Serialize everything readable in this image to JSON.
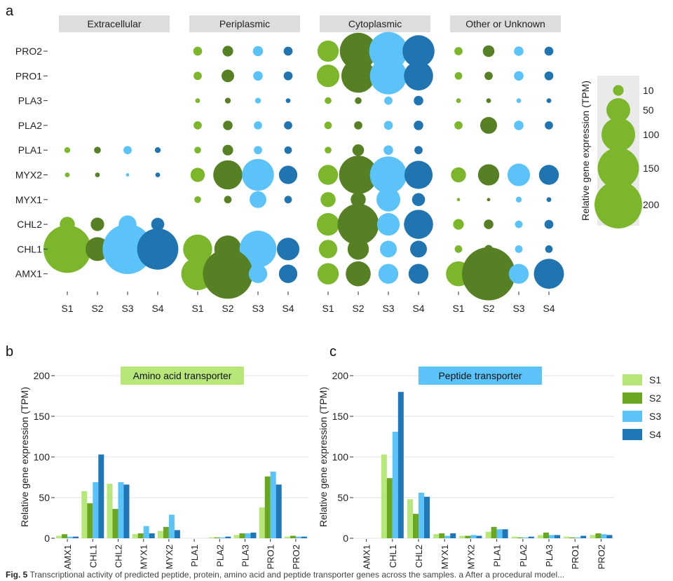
{
  "figure": {
    "panel_labels": {
      "a": "a",
      "b": "b",
      "c": "c"
    },
    "caption_lead": "Fig. 5",
    "caption_text": "Transcriptional activity of predicted peptide, protein, amino acid and peptide transporter genes across the samples. a After a procedural model..."
  },
  "colors": {
    "S1": "#b7e77a",
    "S2": "#6aa61f",
    "S3": "#5bc3f7",
    "S4": "#1f77b8",
    "dot_S1": "#7cb62b",
    "dot_S2": "#577f24",
    "dot_S3": "#5bc3f7",
    "dot_S4": "#2074b0",
    "strip_bg": "#dddddd"
  },
  "chart_data": [
    {
      "type": "scatter",
      "subtype": "bubble-grid",
      "panel": "a",
      "facets": [
        "Extracellular",
        "Periplasmic",
        "Cytoplasmic",
        "Other or Unknown"
      ],
      "rows": [
        "PRO2",
        "PRO1",
        "PLA3",
        "PLA2",
        "PLA1",
        "MYX2",
        "MYX1",
        "CHL2",
        "CHL1",
        "AMX1"
      ],
      "samples": [
        "S1",
        "S2",
        "S3",
        "S4"
      ],
      "values": {
        "Extracellular": {
          "PRO2": [
            null,
            null,
            null,
            null
          ],
          "PRO1": [
            null,
            null,
            null,
            null
          ],
          "PLA3": [
            null,
            null,
            null,
            null
          ],
          "PLA2": [
            null,
            null,
            null,
            null
          ],
          "PLA1": [
            3,
            4,
            6,
            3
          ],
          "MYX2": [
            2,
            2,
            1,
            2
          ],
          "MYX1": [
            null,
            null,
            null,
            null
          ],
          "CHL2": [
            20,
            16,
            28,
            15
          ],
          "CHL1": [
            200,
            50,
            220,
            150
          ],
          "AMX1": [
            null,
            null,
            null,
            null
          ]
        },
        "Periplasmic": {
          "PRO2": [
            7,
            10,
            9,
            7
          ],
          "PRO1": [
            6,
            14,
            8,
            7
          ],
          "PLA3": [
            2,
            3,
            3,
            2
          ],
          "PLA2": [
            6,
            8,
            6,
            6
          ],
          "PLA1": [
            4,
            10,
            6,
            5
          ],
          "MYX2": [
            18,
            75,
            90,
            30
          ],
          "MYX1": [
            4,
            5,
            25,
            5
          ],
          "CHL2": [
            null,
            null,
            null,
            null
          ],
          "CHL1": [
            75,
            65,
            120,
            45
          ],
          "AMX1": [
            95,
            220,
            30,
            30
          ]
        },
        "Cytoplasmic": {
          "PRO2": [
            40,
            120,
            130,
            90
          ],
          "PRO1": [
            45,
            100,
            120,
            75
          ],
          "PLA3": [
            4,
            4,
            6,
            8
          ],
          "PLA2": [
            5,
            6,
            7,
            8
          ],
          "PLA1": [
            4,
            12,
            8,
            6
          ],
          "MYX2": [
            35,
            130,
            120,
            70
          ],
          "MYX1": [
            20,
            20,
            50,
            15
          ],
          "CHL2": [
            45,
            150,
            45,
            75
          ],
          "CHL1": [
            30,
            40,
            25,
            25
          ],
          "AMX1": [
            40,
            55,
            35,
            35
          ]
        },
        "Other or Unknown": {
          "PRO2": [
            6,
            12,
            8,
            7
          ],
          "PRO1": [
            5,
            6,
            8,
            7
          ],
          "PLA3": [
            2,
            2,
            2,
            2
          ],
          "PLA2": [
            6,
            25,
            8,
            6
          ],
          "PLA1": [
            null,
            null,
            null,
            null
          ],
          "MYX2": [
            20,
            40,
            45,
            35
          ],
          "MYX1": [
            1,
            1,
            3,
            2
          ],
          "CHL2": [
            10,
            8,
            5,
            7
          ],
          "CHL1": [
            5,
            6,
            5,
            5
          ],
          "AMX1": [
            55,
            250,
            35,
            80
          ]
        }
      },
      "x_tick_labels": [
        "S1",
        "S2",
        "S3",
        "S4"
      ],
      "size_legend": {
        "title": "Relative gene expression (TPM)",
        "values": [
          10,
          50,
          100,
          150,
          200
        ],
        "labels": [
          "10",
          "50",
          "100",
          "150",
          "200"
        ]
      }
    },
    {
      "type": "bar",
      "panel": "b",
      "title": "Amino acid transporter",
      "categories": [
        "AMX1",
        "CHL1",
        "CHL2",
        "MYX1",
        "MYX2",
        "PLA1",
        "PLA2",
        "PLA3",
        "PRO1",
        "PRO2"
      ],
      "series": [
        {
          "name": "S1",
          "values": [
            3,
            58,
            67,
            5,
            9,
            0,
            1,
            4,
            38,
            2
          ]
        },
        {
          "name": "S2",
          "values": [
            5,
            43,
            36,
            6,
            14,
            0,
            1,
            6,
            76,
            3
          ]
        },
        {
          "name": "S3",
          "values": [
            2,
            69,
            69,
            15,
            29,
            0,
            1,
            6,
            82,
            2
          ]
        },
        {
          "name": "S4",
          "values": [
            2,
            103,
            66,
            6,
            10,
            0,
            2,
            7,
            66,
            2
          ]
        }
      ],
      "ylabel": "Relative gene expression (TPM)",
      "ylim": [
        0,
        200
      ],
      "yticks": [
        0,
        50,
        100,
        150,
        200
      ],
      "ytick_labels": [
        "0",
        "50",
        "100",
        "150",
        "200"
      ]
    },
    {
      "type": "bar",
      "panel": "c",
      "title": "Peptide transporter",
      "categories": [
        "AMX1",
        "CHL1",
        "CHL2",
        "MYX1",
        "MYX2",
        "PLA1",
        "PLA2",
        "PLA3",
        "PRO1",
        "PRO2"
      ],
      "series": [
        {
          "name": "S1",
          "values": [
            0,
            103,
            48,
            5,
            3,
            8,
            2,
            4,
            2,
            4
          ]
        },
        {
          "name": "S2",
          "values": [
            0,
            74,
            30,
            6,
            3,
            14,
            1,
            7,
            1,
            6
          ]
        },
        {
          "name": "S3",
          "values": [
            0,
            131,
            56,
            3,
            4,
            11,
            1,
            4,
            1,
            5
          ]
        },
        {
          "name": "S4",
          "values": [
            0,
            180,
            51,
            6,
            3,
            11,
            2,
            4,
            3,
            4
          ]
        }
      ],
      "ylabel": "Relative gene expression (TPM)",
      "ylim": [
        0,
        200
      ],
      "yticks": [
        0,
        50,
        100,
        150,
        200
      ],
      "ytick_labels": [
        "0",
        "50",
        "100",
        "150",
        "200"
      ],
      "legend": {
        "entries": [
          "S1",
          "S2",
          "S3",
          "S4"
        ],
        "placement": "right"
      }
    }
  ]
}
